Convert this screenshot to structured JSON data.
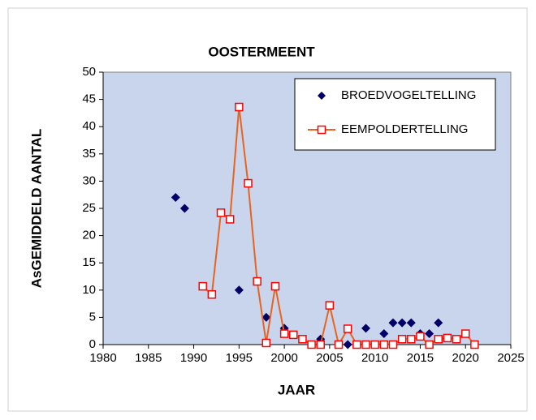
{
  "chart_data": {
    "type": "line",
    "title": "OOSTERMEENT",
    "x_label": "JAAR",
    "y_label": "AsGEMIDDELD AANTAL",
    "xlim": [
      1980,
      2025
    ],
    "xticks": [
      1980,
      1985,
      1990,
      1995,
      2000,
      2005,
      2010,
      2015,
      2020,
      2025
    ],
    "ylim": [
      0,
      50
    ],
    "yticks": [
      0,
      5,
      10,
      15,
      20,
      25,
      30,
      35,
      40,
      45,
      50
    ],
    "grid": false,
    "legend": "upper right",
    "series": [
      {
        "name": "BROEDVOGELTELLING",
        "type": "scatter",
        "color": "#000066",
        "x": [
          1988,
          1989,
          1995,
          1998,
          2000,
          2004,
          2007,
          2009,
          2011,
          2012,
          2013,
          2014,
          2015,
          2016,
          2017
        ],
        "values": [
          27,
          25,
          10,
          5,
          3,
          1,
          0,
          3,
          2,
          4,
          4,
          4,
          2,
          2,
          4
        ]
      },
      {
        "name": "EEMPOLDERTELLING",
        "type": "line",
        "color": "#e8641e",
        "marker_color": "#ff0000",
        "x": [
          1991,
          1992,
          1993,
          1994,
          1995,
          1996,
          1997,
          1998,
          1999,
          2000,
          2001,
          2002,
          2003,
          2004,
          2005,
          2006,
          2007,
          2008,
          2009,
          2010,
          2011,
          2012,
          2013,
          2014,
          2015,
          2016,
          2017,
          2018,
          2019,
          2020,
          2021
        ],
        "values": [
          10.7,
          9.2,
          24.2,
          23,
          43.6,
          29.6,
          11.6,
          0.3,
          10.7,
          2,
          1.8,
          1,
          0,
          0,
          7.2,
          0,
          2.9,
          0,
          0,
          0,
          0,
          0,
          1,
          1,
          1.5,
          0,
          1,
          1.2,
          1,
          2,
          0
        ]
      }
    ]
  }
}
